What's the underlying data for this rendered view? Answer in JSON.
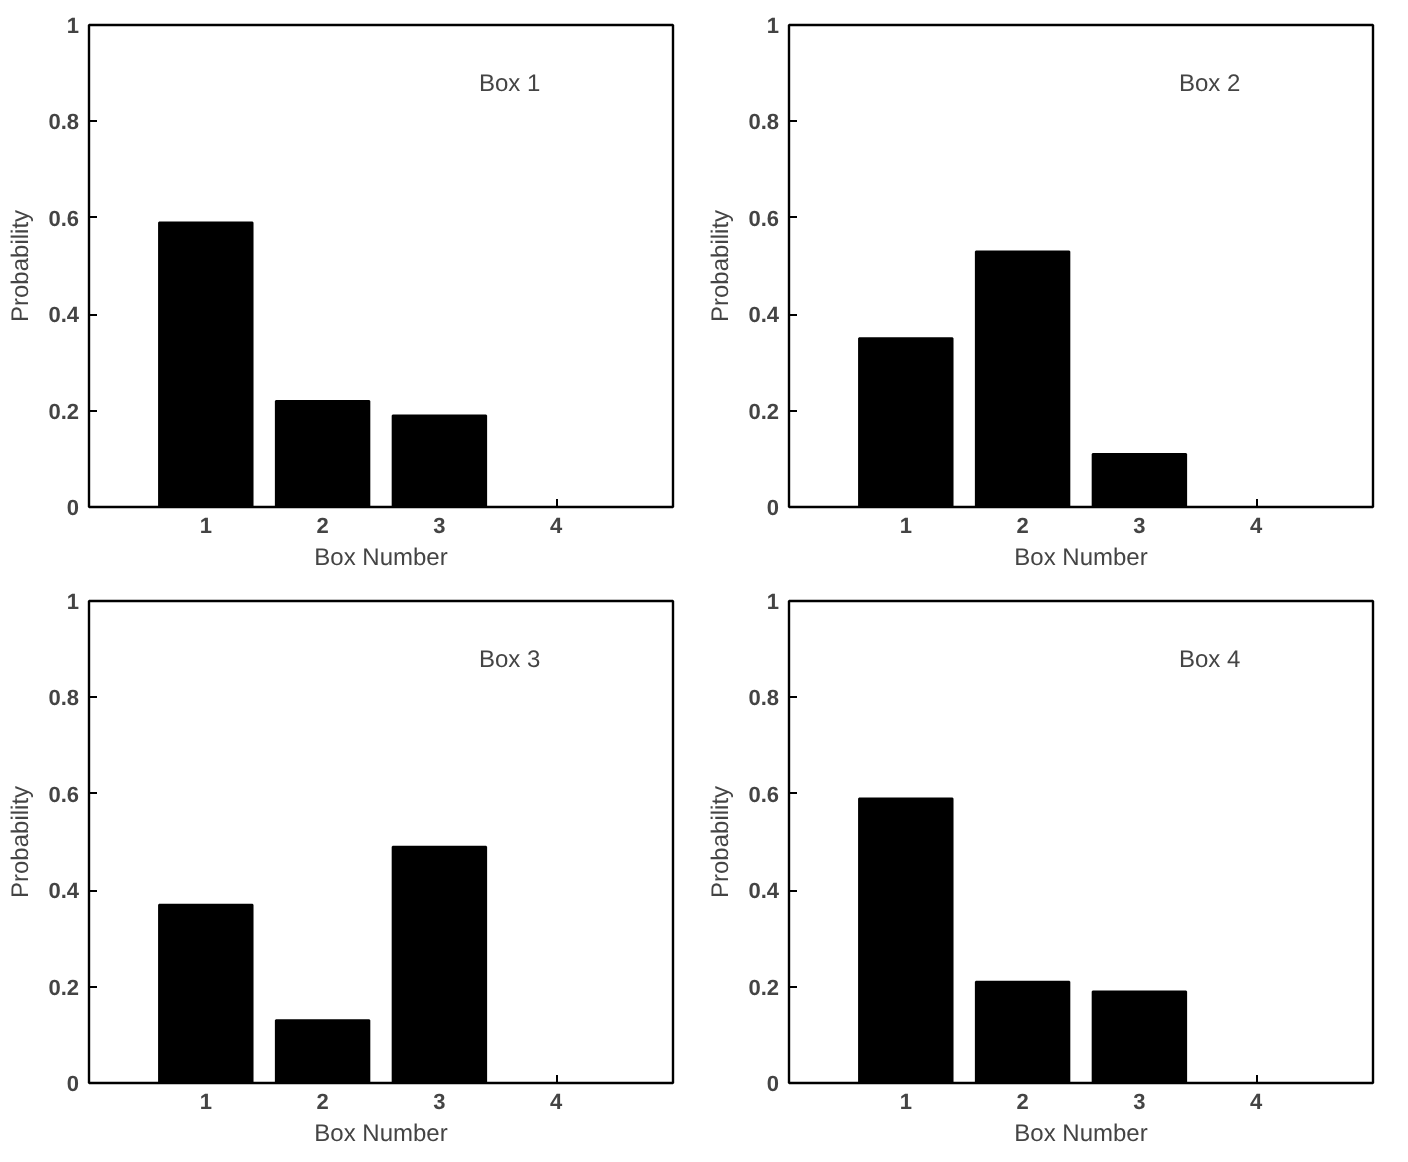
{
  "chart_data": [
    {
      "type": "bar",
      "x": [
        1,
        2,
        3,
        4
      ],
      "values": [
        0.59,
        0.22,
        0.19,
        0
      ],
      "color": "#000000",
      "xlim": [
        0,
        5
      ],
      "xticks": [
        1,
        2,
        3,
        4
      ],
      "ylim": [
        0,
        1
      ],
      "yticks": [
        0,
        0.2,
        0.4,
        0.6,
        0.8,
        1
      ],
      "xlabel": "Box Number",
      "ylabel": "Probability",
      "annotations": [
        "Box 1"
      ],
      "grid": false
    },
    {
      "type": "bar",
      "x": [
        1,
        2,
        3,
        4
      ],
      "values": [
        0.35,
        0.53,
        0.11,
        0
      ],
      "color": "#000000",
      "xlim": [
        0,
        5
      ],
      "xticks": [
        1,
        2,
        3,
        4
      ],
      "ylim": [
        0,
        1
      ],
      "yticks": [
        0,
        0.2,
        0.4,
        0.6,
        0.8,
        1
      ],
      "xlabel": "Box Number",
      "ylabel": "Probability",
      "annotations": [
        "Box 2"
      ],
      "grid": false
    },
    {
      "type": "bar",
      "x": [
        1,
        2,
        3,
        4
      ],
      "values": [
        0.37,
        0.13,
        0.49,
        0
      ],
      "color": "#000000",
      "xlim": [
        0,
        5
      ],
      "xticks": [
        1,
        2,
        3,
        4
      ],
      "ylim": [
        0,
        1
      ],
      "yticks": [
        0,
        0.2,
        0.4,
        0.6,
        0.8,
        1
      ],
      "xlabel": "Box Number",
      "ylabel": "Probability",
      "annotations": [
        "Box 3"
      ],
      "grid": false
    },
    {
      "type": "bar",
      "x": [
        1,
        2,
        3,
        4
      ],
      "values": [
        0.59,
        0.21,
        0.19,
        0
      ],
      "color": "#000000",
      "xlim": [
        0,
        5
      ],
      "xticks": [
        1,
        2,
        3,
        4
      ],
      "ylim": [
        0,
        1
      ],
      "yticks": [
        0,
        0.2,
        0.4,
        0.6,
        0.8,
        1
      ],
      "xlabel": "Box Number",
      "ylabel": "Probability",
      "annotations": [
        "Box 4"
      ],
      "grid": false
    }
  ]
}
